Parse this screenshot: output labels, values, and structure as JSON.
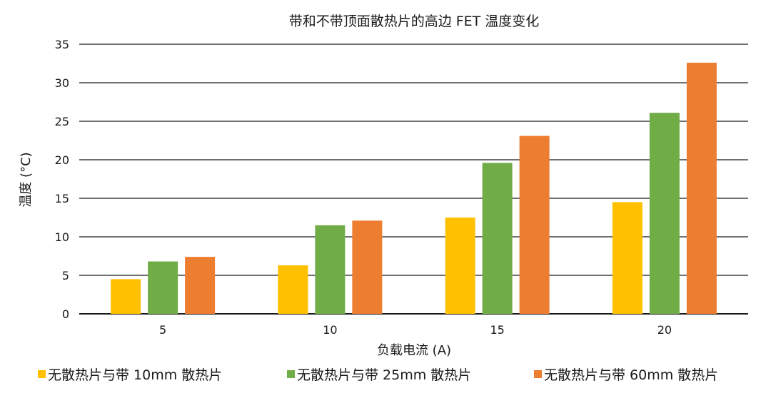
{
  "chart_data": {
    "type": "bar",
    "title": "带和不带顶面散热片的高边 FET 温度变化",
    "xlabel": "负载电流 (A)",
    "ylabel": "温度 (°C)",
    "categories": [
      "5",
      "10",
      "15",
      "20"
    ],
    "ylim": [
      0,
      35
    ],
    "yticks": [
      0,
      5,
      10,
      15,
      20,
      25,
      30,
      35
    ],
    "grid": true,
    "legend_position": "bottom",
    "series": [
      {
        "name": "无散热片与带 10mm 散热片",
        "color": "#FFC000",
        "values": [
          4.5,
          6.3,
          12.5,
          14.5
        ]
      },
      {
        "name": "无散热片与带 25mm 散热片",
        "color": "#70AD47",
        "values": [
          6.8,
          11.5,
          19.6,
          26.1
        ]
      },
      {
        "name": "无散热片与带 60mm 散热片",
        "color": "#ED7D31",
        "values": [
          7.4,
          12.1,
          23.1,
          32.6
        ]
      }
    ]
  }
}
